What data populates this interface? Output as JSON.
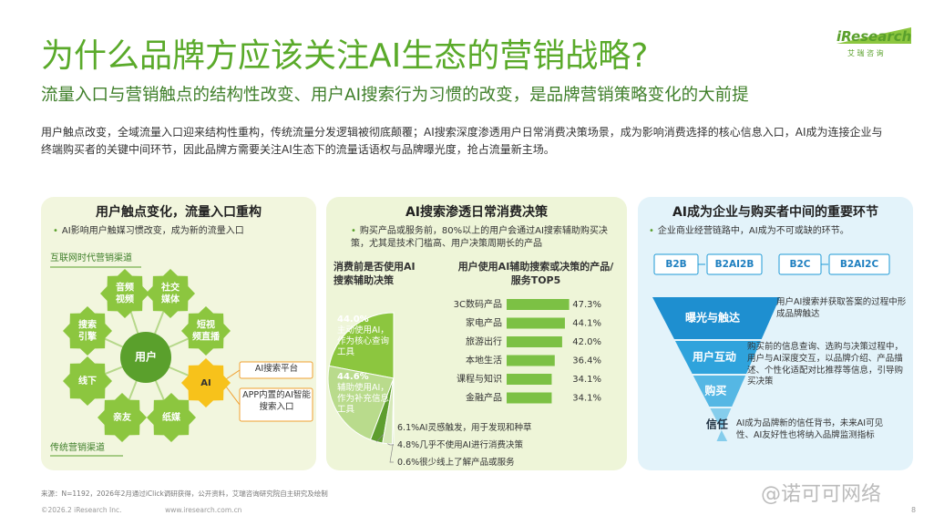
{
  "header": {
    "title": "为什么品牌方应该关注AI生态的营销战略?",
    "subtitle": "流量入口与营销触点的结构性改变、用户AI搜索行为习惯的改变，是品牌营销策略变化的大前提",
    "logo": "iResearch",
    "logo_sub": "艾 瑞 咨 询"
  },
  "intro": "用户触点改变，全域流量入口迎来结构性重构，传统流量分发逻辑被彻底颠覆；AI搜索深度渗透用户日常消费决策场景，成为影响消费选择的核心信息入口，AI成为连接企业与终端购买者的关键中间环节，因此品牌方需要关注AI生态下的流量话语权与品牌曝光度，抢占流量新主场。",
  "panel1": {
    "title": "用户触点变化，流量入口重构",
    "bullet": "AI影响用户触媒习惯改变，成为新的流量入口",
    "top_label": "互联网时代营销渠道",
    "bottom_label": "传统营销渠道",
    "center": "用户",
    "nodes": [
      "音频视频",
      "社交媒体",
      "短视频直播",
      "AI",
      "纸媒",
      "亲友",
      "线下",
      "搜索引擎"
    ],
    "callouts": [
      "AI搜索平台",
      "APP内置的AI智能搜索入口"
    ]
  },
  "panel2": {
    "title": "AI搜索渗透日常消费决策",
    "bullet": "购买产品或服务前，80%以上的用户会通过AI搜索辅助购买决策，尤其是技术门槛高、用户决策周期长的产品",
    "pie": {
      "title": "消费前是否使用AI搜索辅助决策",
      "values": [
        44.0,
        44.6,
        6.1,
        4.8,
        0.6
      ],
      "value_labels": [
        "44.0%",
        "44.6%",
        "6.1%",
        "4.8%",
        "0.6%"
      ],
      "labels": [
        "主动使用AI，作为核心查询工具",
        "辅助使用AI，作为补充信息工具",
        "AI灵感触发，用于发现和种草",
        "几乎不使用AI进行消费决策",
        "很少线上了解产品或服务"
      ],
      "colors": [
        "#8cc63f",
        "#b9db8c",
        "#5e9e2e",
        "#d5e8b8",
        "#a3c67a"
      ]
    },
    "bars": {
      "title": "用户使用AI辅助搜索或决策的产品/服务TOP5",
      "categories": [
        "3C数码产品",
        "家电产品",
        "旅游出行",
        "本地生活",
        "课程与知识",
        "金融产品"
      ],
      "values": [
        47.3,
        44.1,
        42.0,
        36.4,
        34.1,
        34.1
      ],
      "value_labels": [
        "47.3%",
        "44.1%",
        "42.0%",
        "36.4%",
        "34.1%",
        "34.1%"
      ],
      "color": "#7cc144"
    }
  },
  "panel3": {
    "title": "AI成为企业与购买者中间的重要环节",
    "bullet": "企业商业经营链路中，AI成为不可或缺的环节。",
    "chains": [
      "B2B",
      "B2AI2B",
      "B2C",
      "B2AI2C"
    ],
    "funnel": [
      "曝光与触达",
      "用户互动",
      "购买",
      "信任"
    ],
    "notes": [
      "用户AI搜索并获取答案的过程中形成品牌触达",
      "购买前的信息查询、选购与决策过程中，用户与AI深度交互，以品牌介绍、产品描述、个性化适配对比推荐等信息，引导购买决策",
      "AI成为品牌新的信任背书，未来AI可见性、AI友好性也将纳入品牌监测指标"
    ]
  },
  "footer": {
    "source": "来源：N=1192，2026年2月通过iClick调研获得，公开资料，艾瑞咨询研究院自主研究及绘制",
    "copyright": "©2026.2 iResearch Inc.                    www.iresearch.com.cn",
    "page": "8",
    "watermark": "@诺可可网络"
  }
}
